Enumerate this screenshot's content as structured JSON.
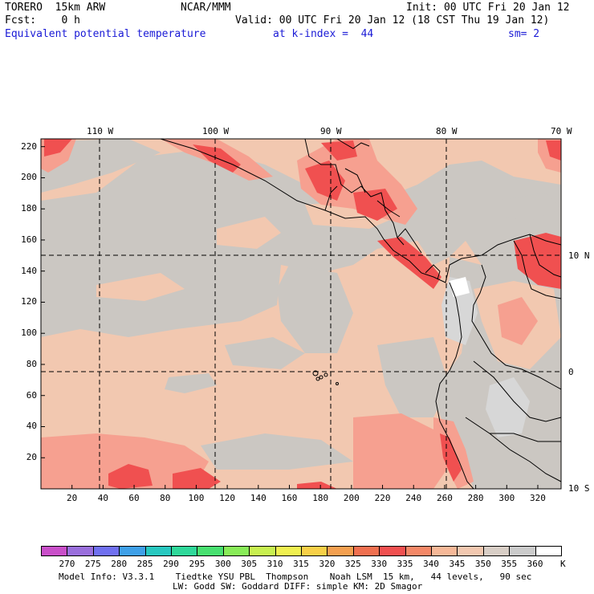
{
  "header": {
    "model": "TORERO  15km ARW",
    "center": "NCAR/MMM",
    "init": "Init: 00 UTC Fri 20 Jan 12",
    "fcst": "Fcst:    0 h",
    "valid": "Valid: 00 UTC Fri 20 Jan 12 (18 CST Thu 19 Jan 12)",
    "field": "Equivalent potential temperature",
    "level": "at k-index =  44",
    "smooth": "sm= 2"
  },
  "map": {
    "lon_labels": [
      "110 W",
      "100 W",
      "90 W",
      "80 W",
      "70 W"
    ],
    "lat_labels": [
      "10 N",
      "0",
      "10 S"
    ],
    "y_ticks": [
      "220",
      "200",
      "180",
      "160",
      "140",
      "120",
      "100",
      "80",
      "60",
      "40",
      "20"
    ],
    "x_ticks": [
      "20",
      "40",
      "60",
      "80",
      "100",
      "120",
      "140",
      "160",
      "180",
      "200",
      "220",
      "240",
      "260",
      "280",
      "300",
      "320"
    ]
  },
  "colorbar": {
    "levels": [
      "270",
      "275",
      "280",
      "285",
      "290",
      "295",
      "300",
      "305",
      "310",
      "315",
      "320",
      "325",
      "330",
      "335",
      "340",
      "345",
      "350",
      "355",
      "360"
    ],
    "unit": "K",
    "colors": [
      "#c94fc9",
      "#9a6fdc",
      "#7070f0",
      "#3fa0e8",
      "#28c8c0",
      "#2fd89a",
      "#48e070",
      "#88ec58",
      "#c8f050",
      "#f0f050",
      "#f8d048",
      "#f4a050",
      "#f07050",
      "#f05050",
      "#f48868",
      "#f6b898",
      "#f2c8b0",
      "#d8cec6",
      "#cbcbcb",
      "#ffffff"
    ]
  },
  "footer": {
    "line1": "Model Info: V3.3.1    Tiedtke YSU PBL  Thompson    Noah LSM  15 km,   44 levels,   90 sec",
    "line2": "LW: Godd SW: Goddard DIFF: simple KM: 2D Smagor"
  },
  "legend_colors": {
    "gray": "#cbc7c2",
    "salmon": "#f2c8b0",
    "pink": "#f6a090",
    "red": "#f05050",
    "lightgray": "#d7d7d7"
  }
}
